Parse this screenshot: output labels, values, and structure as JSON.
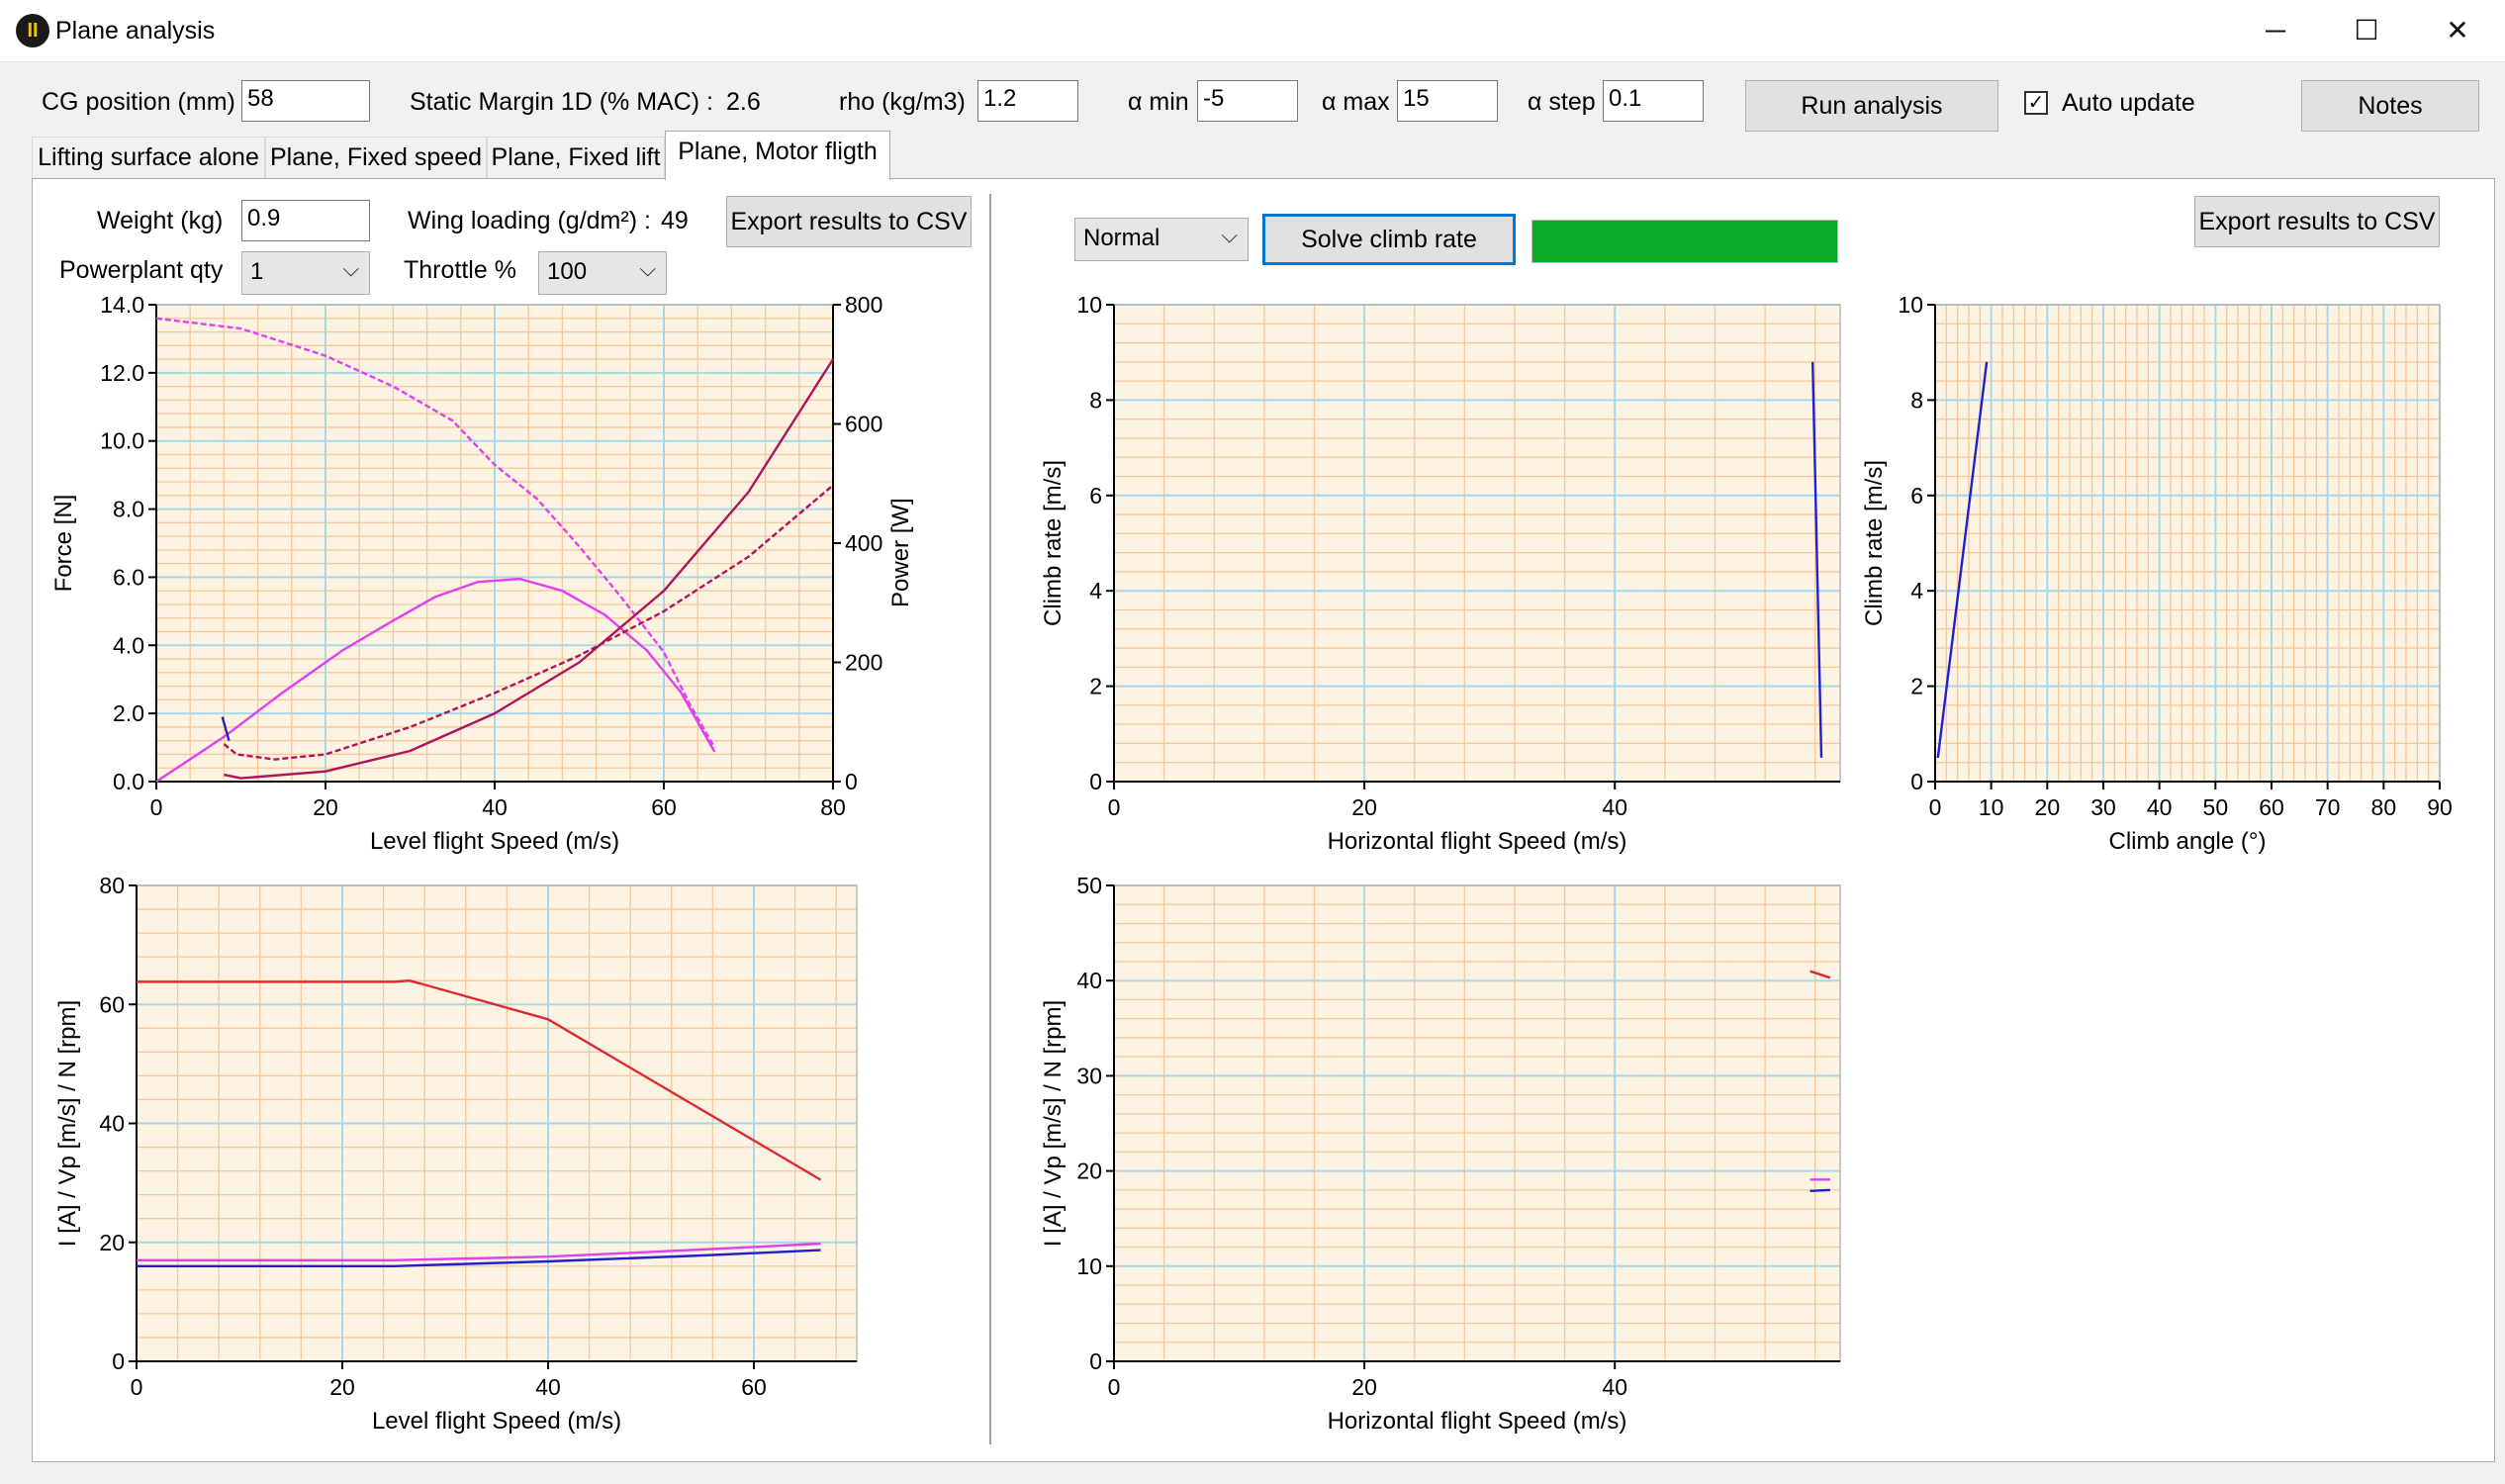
{
  "window": {
    "title": "Plane analysis",
    "icon": "app-logo-icon",
    "controls": {
      "minimize": "─",
      "maximize": "☐",
      "close": "✕"
    }
  },
  "toolbar": {
    "cg_label": "CG position (mm)",
    "cg_value": "58",
    "static_margin_label": "Static Margin 1D (% MAC) :",
    "static_margin_value": "2.6",
    "rho_label": "rho (kg/m3)",
    "rho_value": "1.2",
    "alpha_min_label": "α min",
    "alpha_min_value": "-5",
    "alpha_max_label": "α max",
    "alpha_max_value": "15",
    "alpha_step_label": "α step",
    "alpha_step_value": "0.1",
    "run_label": "Run analysis",
    "auto_update_label": "Auto update",
    "auto_update_checked": "✓",
    "notes_label": "Notes"
  },
  "tabs": [
    "Lifting surface alone",
    "Plane, Fixed speed",
    "Plane, Fixed lift",
    "Plane, Motor fligth"
  ],
  "active_tab": 3,
  "left": {
    "weight_label": "Weight (kg)",
    "weight_value": "0.9",
    "wing_loading_label": "Wing loading (g/dm²) :",
    "wing_loading_value": "49",
    "export_label": "Export results to CSV",
    "powerplant_label": "Powerplant qty",
    "powerplant_value": "1",
    "throttle_label": "Throttle %",
    "throttle_value": "100"
  },
  "right": {
    "mode_value": "Normal",
    "solve_label": "Solve climb rate",
    "progress": 1.0,
    "export_label": "Export results to CSV"
  },
  "colors": {
    "plot_bg": "#fdf3e3",
    "grid_minor": "#f8c89a",
    "grid_major": "#a8d8e8",
    "magenta": "#e040f0",
    "crimson": "#b0145a",
    "red": "#e02830",
    "blue": "#2020d0",
    "progress": "#0ba92a"
  },
  "chart_data": [
    {
      "type": "line",
      "xlabel": "Level flight Speed (m/s)",
      "ylabel": "Force [N]",
      "y2label": "Power [W]",
      "xlim": [
        0,
        80
      ],
      "ylim": [
        0,
        14
      ],
      "y2lim": [
        0,
        800
      ],
      "xticks": [
        "0",
        "20",
        "40",
        "60",
        "80"
      ],
      "yticks": [
        "0.0",
        "2.0",
        "4.0",
        "6.0",
        "8.0",
        "10.0",
        "12.0",
        "14.0"
      ],
      "y2ticks": [
        "0",
        "200",
        "400",
        "600",
        "800"
      ],
      "series": [
        {
          "axis": "y",
          "color": "magenta",
          "dash": true,
          "points": [
            [
              0,
              13.6
            ],
            [
              10,
              13.3
            ],
            [
              20,
              12.5
            ],
            [
              28,
              11.6
            ],
            [
              35,
              10.6
            ],
            [
              40,
              9.3
            ],
            [
              45,
              8.3
            ],
            [
              50,
              6.9
            ],
            [
              55,
              5.4
            ],
            [
              60,
              3.8
            ],
            [
              63,
              2.3
            ],
            [
              66,
              1.0
            ]
          ]
        },
        {
          "axis": "y2",
          "color": "magenta",
          "points": [
            [
              0,
              0
            ],
            [
              8,
              75
            ],
            [
              15,
              150
            ],
            [
              22,
              220
            ],
            [
              28,
              270
            ],
            [
              33,
              310
            ],
            [
              38,
              335
            ],
            [
              43,
              340
            ],
            [
              48,
              320
            ],
            [
              53,
              280
            ],
            [
              58,
              220
            ],
            [
              62,
              150
            ],
            [
              66,
              50
            ]
          ]
        },
        {
          "axis": "y",
          "color": "crimson",
          "dash": true,
          "points": [
            [
              8,
              1.1
            ],
            [
              9.5,
              0.8
            ],
            [
              14,
              0.65
            ],
            [
              20,
              0.8
            ],
            [
              30,
              1.6
            ],
            [
              40,
              2.6
            ],
            [
              50,
              3.7
            ],
            [
              60,
              5.0
            ],
            [
              70,
              6.6
            ],
            [
              80,
              8.7
            ]
          ]
        },
        {
          "axis": "y",
          "color": "crimson",
          "points": [
            [
              8,
              0.2
            ],
            [
              10,
              0.1
            ],
            [
              20,
              0.3
            ],
            [
              30,
              0.9
            ],
            [
              40,
              2.0
            ],
            [
              50,
              3.5
            ],
            [
              60,
              5.6
            ],
            [
              70,
              8.5
            ],
            [
              80,
              12.4
            ]
          ]
        },
        {
          "axis": "y",
          "color": "blue",
          "points": [
            [
              7.8,
              1.9
            ],
            [
              8.6,
              1.2
            ]
          ]
        }
      ]
    },
    {
      "type": "line",
      "xlabel": "Horizontal flight Speed (m/s)",
      "ylabel": "Climb rate [m/s]",
      "xlim": [
        0,
        58
      ],
      "ylim": [
        0,
        10
      ],
      "xticks": [
        "0",
        "20",
        "40"
      ],
      "yticks": [
        "0",
        "2",
        "4",
        "6",
        "8",
        "10"
      ],
      "series": [
        {
          "color": "blue",
          "points": [
            [
              55.8,
              8.8
            ],
            [
              56.5,
              0.5
            ]
          ]
        }
      ]
    },
    {
      "type": "line",
      "xlabel": "Climb angle (°)",
      "ylabel": "Climb rate [m/s]",
      "xlim": [
        0,
        90
      ],
      "ylim": [
        0,
        10
      ],
      "xticks": [
        "0",
        "10",
        "20",
        "30",
        "40",
        "50",
        "60",
        "70",
        "80",
        "90"
      ],
      "yticks": [
        "0",
        "2",
        "4",
        "6",
        "8",
        "10"
      ],
      "series": [
        {
          "color": "blue",
          "points": [
            [
              0.5,
              0.5
            ],
            [
              9.2,
              8.8
            ]
          ]
        }
      ]
    },
    {
      "type": "line",
      "xlabel": "Level flight Speed (m/s)",
      "ylabel": "I [A]  /  Vp [m/s]  /  N [rpm]",
      "xlim": [
        0,
        70
      ],
      "ylim": [
        0,
        80
      ],
      "xticks": [
        "0",
        "20",
        "40",
        "60"
      ],
      "yticks": [
        "0",
        "20",
        "40",
        "60",
        "80"
      ],
      "series": [
        {
          "color": "red",
          "points": [
            [
              0,
              63.8
            ],
            [
              25,
              63.8
            ],
            [
              26.5,
              64.0
            ],
            [
              28,
              63.3
            ],
            [
              40,
              57.5
            ],
            [
              66.5,
              30.5
            ]
          ]
        },
        {
          "color": "magenta",
          "points": [
            [
              0,
              17.0
            ],
            [
              25,
              17.0
            ],
            [
              40,
              17.6
            ],
            [
              55,
              18.8
            ],
            [
              66.5,
              19.8
            ]
          ]
        },
        {
          "color": "blue",
          "points": [
            [
              0,
              16.0
            ],
            [
              25,
              16.0
            ],
            [
              40,
              16.8
            ],
            [
              55,
              17.8
            ],
            [
              66.5,
              18.7
            ]
          ]
        }
      ]
    },
    {
      "type": "line",
      "xlabel": "Horizontal flight Speed (m/s)",
      "ylabel": "I [A]  /  Vp [m/s]  /  N [rpm]",
      "xlim": [
        0,
        58
      ],
      "ylim": [
        0,
        50
      ],
      "xticks": [
        "0",
        "20",
        "40"
      ],
      "yticks": [
        "0",
        "10",
        "20",
        "30",
        "40",
        "50"
      ],
      "series": [
        {
          "color": "red",
          "points": [
            [
              55.6,
              41.0
            ],
            [
              57.2,
              40.3
            ]
          ]
        },
        {
          "color": "magenta",
          "points": [
            [
              55.6,
              19.1
            ],
            [
              57.2,
              19.1
            ]
          ]
        },
        {
          "color": "blue",
          "points": [
            [
              55.6,
              17.9
            ],
            [
              57.2,
              18.0
            ]
          ]
        }
      ]
    }
  ]
}
